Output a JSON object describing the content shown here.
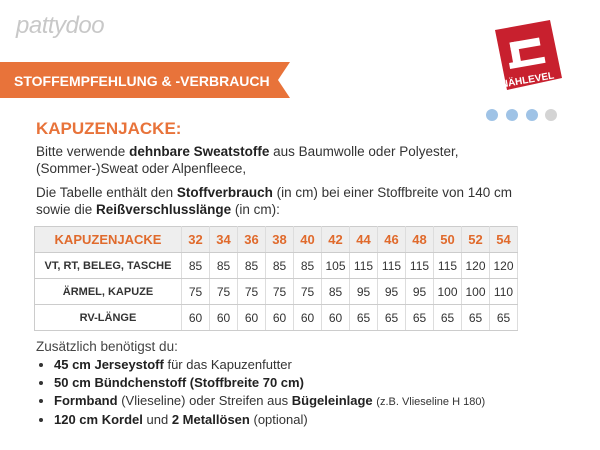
{
  "logo": "pattydoo",
  "banner": "STOFFEMPFEHLUNG & -VERBRAUCH",
  "badge": "NÄHLEVEL",
  "heading": "KAPUZENJACKE:",
  "intro": {
    "line1": [
      "Bitte verwende",
      "dehnbare Sweatstoffe",
      "aus Baumwolle oder Polyester,"
    ],
    "line2": "(Sommer-)Sweat oder Alpenfleece,"
  },
  "table_intro": {
    "line1": [
      "Die Tabelle enthält den",
      "Stoffverbrauch",
      "(in cm) bei einer  Stoffbreite von 140 cm"
    ],
    "line2": [
      "sowie die",
      "Reißverschlusslänge",
      "(in cm):"
    ]
  },
  "table": {
    "header": [
      "KAPUZENJACKE",
      32,
      34,
      36,
      38,
      40,
      42,
      44,
      46,
      48,
      50,
      52,
      54
    ],
    "rows": [
      [
        "VT, RT, BELEG, TASCHE",
        85,
        85,
        85,
        85,
        85,
        105,
        115,
        115,
        115,
        115,
        120,
        120
      ],
      [
        "ÄRMEL, KAPUZE",
        75,
        75,
        75,
        75,
        75,
        85,
        95,
        95,
        95,
        100,
        100,
        110
      ],
      [
        "RV-LÄNGE",
        60,
        60,
        60,
        60,
        60,
        60,
        65,
        65,
        65,
        65,
        65,
        65
      ]
    ]
  },
  "extras_title": "Zusätzlich benötigst du:",
  "extras": [
    [
      "45 cm Jerseystoff",
      "für das Kapuzenfutter"
    ],
    [
      "50 cm Bündchenstoff (Stoffbreite 70 cm)"
    ],
    [
      "Formband",
      "(Vlieseline) oder Streifen aus",
      "Bügeleinlage",
      "(z.B. Vlieseline H 180)"
    ],
    [
      "120 cm Kordel",
      "und",
      "2 Metallösen",
      "(optional)"
    ]
  ]
}
